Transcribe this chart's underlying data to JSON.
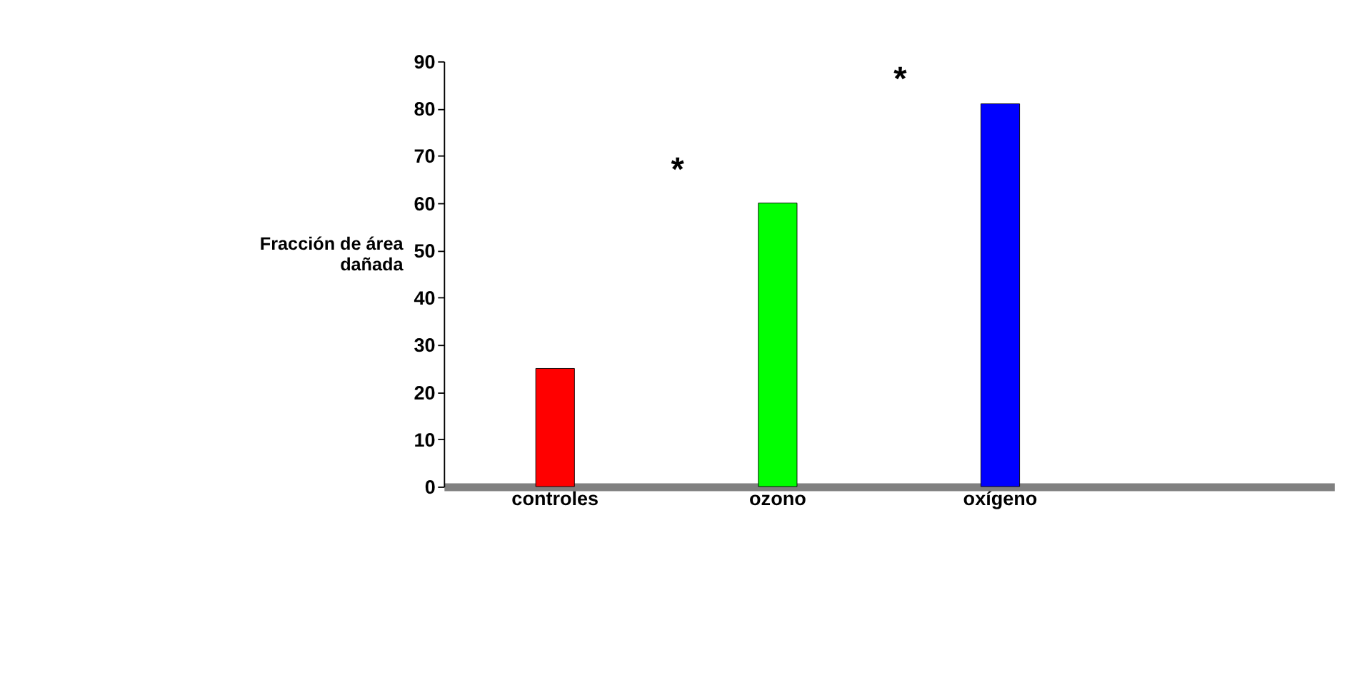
{
  "chart_data": {
    "type": "bar",
    "ylabel": "Fracción de área dañada",
    "categories": [
      "controles",
      "ozono",
      "oxígeno",
      null
    ],
    "values": [
      25,
      60,
      81,
      null
    ],
    "colors": [
      "#ff0000",
      "#00ff00",
      "#0000ff",
      "#808080"
    ],
    "ylim": [
      0,
      90
    ],
    "yticks": [
      0,
      10,
      20,
      30,
      40,
      50,
      60,
      70,
      80,
      90
    ],
    "grid": false,
    "annotations": [
      "*",
      "*"
    ]
  }
}
